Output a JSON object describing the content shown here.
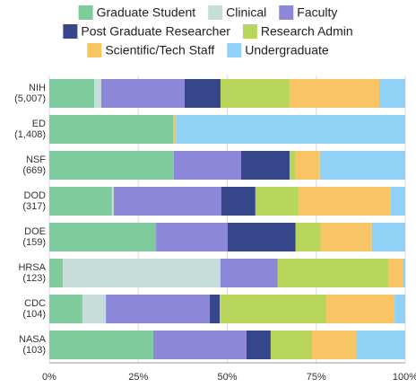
{
  "chart_data": {
    "type": "bar",
    "orientation": "horizontal",
    "stacked": true,
    "categories": [
      [
        "NIH",
        "(5,007)"
      ],
      [
        "ED",
        "(1,408)"
      ],
      [
        "NSF",
        "(669)"
      ],
      [
        "DOD",
        "(317)"
      ],
      [
        "DOE",
        "(159)"
      ],
      [
        "HRSA",
        "(123)"
      ],
      [
        "CDC",
        "(104)"
      ],
      [
        "NASA",
        "(103)"
      ]
    ],
    "series": [
      {
        "name": "Graduate Student",
        "color": "#80cb9c",
        "values": [
          12.6,
          34.8,
          35,
          17.6,
          30,
          3.8,
          9.3,
          29.2
        ]
      },
      {
        "name": "Clinical",
        "color": "#c6ddd9",
        "values": [
          2,
          0,
          0,
          0.5,
          0,
          44.3,
          6.6,
          0
        ]
      },
      {
        "name": "Faculty",
        "color": "#8c87d9",
        "values": [
          23.4,
          0,
          18.9,
          30.2,
          20.1,
          16.1,
          29.2,
          26.2
        ]
      },
      {
        "name": "Post Graduate Researcher",
        "color": "#36468b",
        "values": [
          10.1,
          0,
          13.6,
          9.6,
          19.1,
          0,
          2.8,
          6.8
        ]
      },
      {
        "name": "Research Admin",
        "color": "#b7d65b",
        "values": [
          19.4,
          0.3,
          1.5,
          12.1,
          7,
          31,
          30,
          11.6
        ]
      },
      {
        "name": "Scientific/Tech Staff",
        "color": "#f9c463",
        "values": [
          25.2,
          0.5,
          7,
          25.9,
          14.4,
          4.3,
          19.1,
          12.6
        ]
      },
      {
        "name": "Undergraduate",
        "color": "#8fd2f5",
        "values": [
          7.3,
          64.4,
          24,
          4.1,
          9.4,
          0.5,
          3,
          13.6
        ]
      }
    ],
    "xlim": [
      0,
      100
    ],
    "xticks": [
      {
        "value": 0,
        "label": "0%"
      },
      {
        "value": 25,
        "label": "25%"
      },
      {
        "value": 50,
        "label": "50%"
      },
      {
        "value": 75,
        "label": "75%"
      },
      {
        "value": 100,
        "label": "100%"
      }
    ],
    "grid": true
  }
}
